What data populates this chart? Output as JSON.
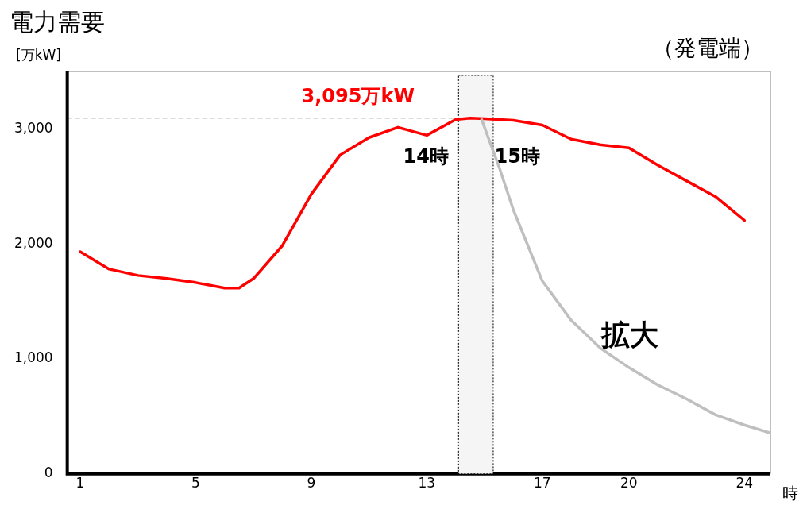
{
  "chart_data": {
    "type": "line",
    "title": "電力需要",
    "subtitle": "（発電端）",
    "ylabel": "[万kW]",
    "xlabel": "時",
    "xlim": [
      0.55,
      24.9
    ],
    "xticks": [
      1,
      5,
      9,
      13,
      17,
      20,
      24
    ],
    "ylim": [
      0,
      3500
    ],
    "yticks": [
      0,
      {
        "value": 1000,
        "label": "1,000"
      },
      {
        "value": 2000,
        "label": "2,000"
      },
      {
        "value": 3000,
        "label": "3,000"
      }
    ],
    "grid": false,
    "legend": false,
    "marker": "none",
    "line_style": "solid",
    "series": [
      {
        "color": "#ff0000",
        "x": [
          1,
          2,
          3,
          4,
          5,
          6,
          6.5,
          7,
          8,
          9,
          10,
          11,
          12,
          13,
          14,
          14.5,
          15,
          16,
          17,
          18,
          19,
          20,
          21,
          22,
          23,
          24
        ],
        "values": [
          1932,
          1781,
          1726,
          1699,
          1664,
          1616,
          1616,
          1699,
          1986,
          2432,
          2774,
          2925,
          3014,
          2945,
          3082,
          3095,
          3089,
          3075,
          3034,
          2911,
          2863,
          2836,
          2685,
          2548,
          2411,
          2205
        ]
      },
      {
        "color": "#bfbfbf",
        "x": [
          14.9,
          15.5,
          16,
          17,
          18,
          19,
          20,
          21,
          22,
          23,
          24,
          24.9
        ],
        "values": [
          3082,
          2671,
          2295,
          1678,
          1336,
          1096,
          925,
          774,
          651,
          514,
          425,
          356
        ]
      }
    ],
    "ref_lines": [
      {
        "axis": "y",
        "value": 3095,
        "line_style": "dashed"
      }
    ],
    "bands": [
      {
        "axis": "x",
        "from": 14.1,
        "to": 15.3,
        "color": "#f5f5f5"
      }
    ],
    "annotations": [
      {
        "text": "3,095万kW",
        "x": 14.5,
        "y": 3095
      },
      "14時",
      "15時",
      "拡大"
    ]
  }
}
